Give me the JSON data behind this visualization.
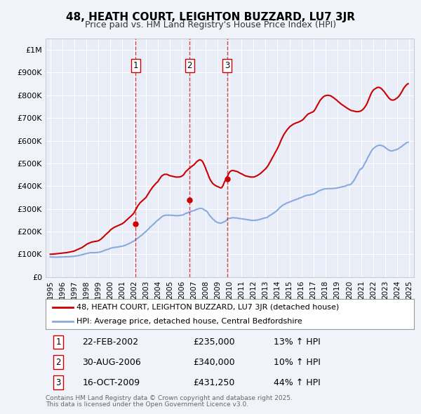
{
  "title": "48, HEATH COURT, LEIGHTON BUZZARD, LU7 3JR",
  "subtitle": "Price paid vs. HM Land Registry's House Price Index (HPI)",
  "background_color": "#f0f4fa",
  "plot_bg_color": "#e8edf8",
  "grid_color": "#ffffff",
  "ylim": [
    0,
    1050000
  ],
  "yticks": [
    0,
    100000,
    200000,
    300000,
    400000,
    500000,
    600000,
    700000,
    800000,
    900000,
    1000000
  ],
  "ytick_labels": [
    "£0",
    "£100K",
    "£200K",
    "£300K",
    "£400K",
    "£500K",
    "£600K",
    "£700K",
    "£800K",
    "£900K",
    "£1M"
  ],
  "sale_color": "#cc0000",
  "hpi_color": "#88aadd",
  "sale_date_years": [
    2002.14,
    2006.66,
    2009.79
  ],
  "sale_prices": [
    235000,
    340000,
    431250
  ],
  "sale_labels": [
    "1",
    "2",
    "3"
  ],
  "legend_sale_label": "48, HEATH COURT, LEIGHTON BUZZARD, LU7 3JR (detached house)",
  "legend_hpi_label": "HPI: Average price, detached house, Central Bedfordshire",
  "table_rows": [
    {
      "label": "1",
      "date": "22-FEB-2002",
      "price": "£235,000",
      "hpi": "13% ↑ HPI"
    },
    {
      "label": "2",
      "date": "30-AUG-2006",
      "price": "£340,000",
      "hpi": "10% ↑ HPI"
    },
    {
      "label": "3",
      "date": "16-OCT-2009",
      "price": "£431,250",
      "hpi": "44% ↑ HPI"
    }
  ],
  "footer_line1": "Contains HM Land Registry data © Crown copyright and database right 2025.",
  "footer_line2": "This data is licensed under the Open Government Licence v3.0.",
  "hpi_years": [
    1995.0,
    1995.08,
    1995.17,
    1995.25,
    1995.33,
    1995.42,
    1995.5,
    1995.58,
    1995.67,
    1995.75,
    1995.83,
    1995.92,
    1996.0,
    1996.08,
    1996.17,
    1996.25,
    1996.33,
    1996.42,
    1996.5,
    1996.58,
    1996.67,
    1996.75,
    1996.83,
    1996.92,
    1997.0,
    1997.08,
    1997.17,
    1997.25,
    1997.33,
    1997.42,
    1997.5,
    1997.58,
    1997.67,
    1997.75,
    1997.83,
    1997.92,
    1998.0,
    1998.08,
    1998.17,
    1998.25,
    1998.33,
    1998.42,
    1998.5,
    1998.58,
    1998.67,
    1998.75,
    1998.83,
    1998.92,
    1999.0,
    1999.08,
    1999.17,
    1999.25,
    1999.33,
    1999.42,
    1999.5,
    1999.58,
    1999.67,
    1999.75,
    1999.83,
    1999.92,
    2000.0,
    2000.08,
    2000.17,
    2000.25,
    2000.33,
    2000.42,
    2000.5,
    2000.58,
    2000.67,
    2000.75,
    2000.83,
    2000.92,
    2001.0,
    2001.08,
    2001.17,
    2001.25,
    2001.33,
    2001.42,
    2001.5,
    2001.58,
    2001.67,
    2001.75,
    2001.83,
    2001.92,
    2002.0,
    2002.08,
    2002.17,
    2002.25,
    2002.33,
    2002.42,
    2002.5,
    2002.58,
    2002.67,
    2002.75,
    2002.83,
    2002.92,
    2003.0,
    2003.08,
    2003.17,
    2003.25,
    2003.33,
    2003.42,
    2003.5,
    2003.58,
    2003.67,
    2003.75,
    2003.83,
    2003.92,
    2004.0,
    2004.08,
    2004.17,
    2004.25,
    2004.33,
    2004.42,
    2004.5,
    2004.58,
    2004.67,
    2004.75,
    2004.83,
    2004.92,
    2005.0,
    2005.08,
    2005.17,
    2005.25,
    2005.33,
    2005.42,
    2005.5,
    2005.58,
    2005.67,
    2005.75,
    2005.83,
    2005.92,
    2006.0,
    2006.08,
    2006.17,
    2006.25,
    2006.33,
    2006.42,
    2006.5,
    2006.58,
    2006.67,
    2006.75,
    2006.83,
    2006.92,
    2007.0,
    2007.08,
    2007.17,
    2007.25,
    2007.33,
    2007.42,
    2007.5,
    2007.58,
    2007.67,
    2007.75,
    2007.83,
    2007.92,
    2008.0,
    2008.08,
    2008.17,
    2008.25,
    2008.33,
    2008.42,
    2008.5,
    2008.58,
    2008.67,
    2008.75,
    2008.83,
    2008.92,
    2009.0,
    2009.08,
    2009.17,
    2009.25,
    2009.33,
    2009.42,
    2009.5,
    2009.58,
    2009.67,
    2009.75,
    2009.83,
    2009.92,
    2010.0,
    2010.08,
    2010.17,
    2010.25,
    2010.33,
    2010.42,
    2010.5,
    2010.58,
    2010.67,
    2010.75,
    2010.83,
    2010.92,
    2011.0,
    2011.08,
    2011.17,
    2011.25,
    2011.33,
    2011.42,
    2011.5,
    2011.58,
    2011.67,
    2011.75,
    2011.83,
    2011.92,
    2012.0,
    2012.08,
    2012.17,
    2012.25,
    2012.33,
    2012.42,
    2012.5,
    2012.58,
    2012.67,
    2012.75,
    2012.83,
    2012.92,
    2013.0,
    2013.08,
    2013.17,
    2013.25,
    2013.33,
    2013.42,
    2013.5,
    2013.58,
    2013.67,
    2013.75,
    2013.83,
    2013.92,
    2014.0,
    2014.08,
    2014.17,
    2014.25,
    2014.33,
    2014.42,
    2014.5,
    2014.58,
    2014.67,
    2014.75,
    2014.83,
    2014.92,
    2015.0,
    2015.08,
    2015.17,
    2015.25,
    2015.33,
    2015.42,
    2015.5,
    2015.58,
    2015.67,
    2015.75,
    2015.83,
    2015.92,
    2016.0,
    2016.08,
    2016.17,
    2016.25,
    2016.33,
    2016.42,
    2016.5,
    2016.58,
    2016.67,
    2016.75,
    2016.83,
    2016.92,
    2017.0,
    2017.08,
    2017.17,
    2017.25,
    2017.33,
    2017.42,
    2017.5,
    2017.58,
    2017.67,
    2017.75,
    2017.83,
    2017.92,
    2018.0,
    2018.08,
    2018.17,
    2018.25,
    2018.33,
    2018.42,
    2018.5,
    2018.58,
    2018.67,
    2018.75,
    2018.83,
    2018.92,
    2019.0,
    2019.08,
    2019.17,
    2019.25,
    2019.33,
    2019.42,
    2019.5,
    2019.58,
    2019.67,
    2019.75,
    2019.83,
    2019.92,
    2020.0,
    2020.08,
    2020.17,
    2020.25,
    2020.33,
    2020.42,
    2020.5,
    2020.58,
    2020.67,
    2020.75,
    2020.83,
    2020.92,
    2021.0,
    2021.08,
    2021.17,
    2021.25,
    2021.33,
    2021.42,
    2021.5,
    2021.58,
    2021.67,
    2021.75,
    2021.83,
    2021.92,
    2022.0,
    2022.08,
    2022.17,
    2022.25,
    2022.33,
    2022.42,
    2022.5,
    2022.58,
    2022.67,
    2022.75,
    2022.83,
    2022.92,
    2023.0,
    2023.08,
    2023.17,
    2023.25,
    2023.33,
    2023.42,
    2023.5,
    2023.58,
    2023.67,
    2023.75,
    2023.83,
    2023.92,
    2024.0,
    2024.08,
    2024.17,
    2024.25,
    2024.33,
    2024.42,
    2024.5,
    2024.58,
    2024.67,
    2024.75,
    2024.83,
    2024.92
  ],
  "hpi_values": [
    88000,
    87800,
    87600,
    87500,
    87400,
    87200,
    87000,
    87200,
    87400,
    87500,
    87700,
    87900,
    88000,
    88200,
    88400,
    88500,
    88700,
    88900,
    89000,
    89300,
    89700,
    90000,
    90300,
    90600,
    91000,
    92000,
    93000,
    93000,
    94000,
    95000,
    96000,
    97000,
    98000,
    99000,
    101000,
    102000,
    103000,
    104000,
    105000,
    106000,
    106500,
    107000,
    107000,
    107000,
    107000,
    107000,
    107500,
    108000,
    108000,
    109000,
    110000,
    111000,
    112500,
    114000,
    116000,
    118000,
    119500,
    121000,
    122000,
    123000,
    126000,
    127000,
    128000,
    129000,
    130000,
    130500,
    131000,
    131500,
    132000,
    133000,
    134000,
    134500,
    135000,
    136500,
    138000,
    139000,
    141000,
    143000,
    145000,
    147000,
    149000,
    151000,
    154000,
    156000,
    158000,
    162000,
    166000,
    168000,
    171000,
    175000,
    179000,
    182000,
    185000,
    189000,
    193000,
    197000,
    200000,
    205000,
    209000,
    213000,
    218000,
    222000,
    226000,
    230000,
    234000,
    238000,
    243000,
    247000,
    250000,
    254000,
    258000,
    262000,
    265000,
    268000,
    270000,
    271000,
    272000,
    272000,
    272000,
    272000,
    272000,
    272000,
    271500,
    271000,
    270500,
    270000,
    270000,
    270000,
    270000,
    270000,
    271000,
    272000,
    272000,
    273000,
    274500,
    278000,
    280000,
    281000,
    283000,
    285000,
    287000,
    288000,
    290000,
    291000,
    292000,
    294000,
    296000,
    298000,
    299000,
    300500,
    302000,
    302000,
    301500,
    300000,
    297000,
    294000,
    292000,
    289000,
    284000,
    277000,
    271000,
    265000,
    261000,
    256000,
    252000,
    248000,
    244000,
    242000,
    240000,
    238000,
    237500,
    237000,
    238000,
    240000,
    242000,
    244000,
    246000,
    251000,
    256000,
    258000,
    258000,
    259000,
    260000,
    261000,
    260500,
    260000,
    260000,
    259500,
    259000,
    258000,
    257500,
    257000,
    256000,
    255500,
    255000,
    254000,
    253500,
    253000,
    252000,
    251500,
    251000,
    250000,
    249500,
    249000,
    249000,
    249500,
    250000,
    250000,
    251000,
    252000,
    253000,
    254000,
    255500,
    257000,
    258500,
    260000,
    260000,
    261500,
    263000,
    267000,
    270000,
    272500,
    275000,
    278000,
    281000,
    284000,
    287000,
    290000,
    295000,
    299000,
    303500,
    308000,
    311500,
    315000,
    318000,
    320000,
    322000,
    325000,
    327000,
    328000,
    330000,
    331500,
    333000,
    335000,
    337000,
    338500,
    340000,
    341500,
    343000,
    345000,
    347000,
    348500,
    350000,
    352000,
    354000,
    356000,
    357500,
    359000,
    360000,
    360500,
    361000,
    362000,
    363000,
    364000,
    365000,
    367000,
    369500,
    372000,
    375000,
    377500,
    380000,
    381500,
    383000,
    385000,
    386500,
    388000,
    388000,
    388500,
    389000,
    389000,
    389000,
    389000,
    389000,
    389500,
    390000,
    390000,
    390500,
    391000,
    392000,
    393000,
    394000,
    395000,
    396000,
    397000,
    398000,
    399000,
    400000,
    402000,
    404000,
    406000,
    405000,
    407000,
    410000,
    415000,
    421000,
    427000,
    435000,
    443000,
    451000,
    460000,
    468000,
    475000,
    475000,
    480000,
    487000,
    495000,
    503000,
    511000,
    520000,
    529000,
    537000,
    545000,
    553000,
    560000,
    565000,
    568000,
    572000,
    575000,
    577000,
    579000,
    580000,
    580000,
    579000,
    578000,
    576000,
    574000,
    570000,
    567000,
    563000,
    560000,
    558000,
    556000,
    555000,
    555000,
    556000,
    558000,
    559000,
    560000,
    562000,
    564000,
    567000,
    570000,
    573000,
    576000,
    580000,
    583000,
    586000,
    590000,
    592000,
    593000
  ],
  "sale_line_years": [
    1995.0,
    1995.08,
    1995.17,
    1995.25,
    1995.33,
    1995.42,
    1995.5,
    1995.58,
    1995.67,
    1995.75,
    1995.83,
    1995.92,
    1996.0,
    1996.08,
    1996.17,
    1996.25,
    1996.33,
    1996.42,
    1996.5,
    1996.58,
    1996.67,
    1996.75,
    1996.83,
    1996.92,
    1997.0,
    1997.08,
    1997.17,
    1997.25,
    1997.33,
    1997.42,
    1997.5,
    1997.58,
    1997.67,
    1997.75,
    1997.83,
    1997.92,
    1998.0,
    1998.08,
    1998.17,
    1998.25,
    1998.33,
    1998.42,
    1998.5,
    1998.58,
    1998.67,
    1998.75,
    1998.83,
    1998.92,
    1999.0,
    1999.08,
    1999.17,
    1999.25,
    1999.33,
    1999.42,
    1999.5,
    1999.58,
    1999.67,
    1999.75,
    1999.83,
    1999.92,
    2000.0,
    2000.08,
    2000.17,
    2000.25,
    2000.33,
    2000.42,
    2000.5,
    2000.58,
    2000.67,
    2000.75,
    2000.83,
    2000.92,
    2001.0,
    2001.08,
    2001.17,
    2001.25,
    2001.33,
    2001.42,
    2001.5,
    2001.58,
    2001.67,
    2001.75,
    2001.83,
    2001.92,
    2002.0,
    2002.08,
    2002.17,
    2002.25,
    2002.33,
    2002.42,
    2002.5,
    2002.58,
    2002.67,
    2002.75,
    2002.83,
    2002.92,
    2003.0,
    2003.08,
    2003.17,
    2003.25,
    2003.33,
    2003.42,
    2003.5,
    2003.58,
    2003.67,
    2003.75,
    2003.83,
    2003.92,
    2004.0,
    2004.08,
    2004.17,
    2004.25,
    2004.33,
    2004.42,
    2004.5,
    2004.58,
    2004.67,
    2004.75,
    2004.83,
    2004.92,
    2005.0,
    2005.08,
    2005.17,
    2005.25,
    2005.33,
    2005.42,
    2005.5,
    2005.58,
    2005.67,
    2005.75,
    2005.83,
    2005.92,
    2006.0,
    2006.08,
    2006.17,
    2006.25,
    2006.33,
    2006.42,
    2006.5,
    2006.58,
    2006.67,
    2006.75,
    2006.83,
    2006.92,
    2007.0,
    2007.08,
    2007.17,
    2007.25,
    2007.33,
    2007.42,
    2007.5,
    2007.58,
    2007.67,
    2007.75,
    2007.83,
    2007.92,
    2008.0,
    2008.08,
    2008.17,
    2008.25,
    2008.33,
    2008.42,
    2008.5,
    2008.58,
    2008.67,
    2008.75,
    2008.83,
    2008.92,
    2009.0,
    2009.08,
    2009.17,
    2009.25,
    2009.33,
    2009.42,
    2009.5,
    2009.58,
    2009.67,
    2009.75,
    2009.83,
    2009.92,
    2010.0,
    2010.08,
    2010.17,
    2010.25,
    2010.33,
    2010.42,
    2010.5,
    2010.58,
    2010.67,
    2010.75,
    2010.83,
    2010.92,
    2011.0,
    2011.08,
    2011.17,
    2011.25,
    2011.33,
    2011.42,
    2011.5,
    2011.58,
    2011.67,
    2011.75,
    2011.83,
    2011.92,
    2012.0,
    2012.08,
    2012.17,
    2012.25,
    2012.33,
    2012.42,
    2012.5,
    2012.58,
    2012.67,
    2012.75,
    2012.83,
    2012.92,
    2013.0,
    2013.08,
    2013.17,
    2013.25,
    2013.33,
    2013.42,
    2013.5,
    2013.58,
    2013.67,
    2013.75,
    2013.83,
    2013.92,
    2014.0,
    2014.08,
    2014.17,
    2014.25,
    2014.33,
    2014.42,
    2014.5,
    2014.58,
    2014.67,
    2014.75,
    2014.83,
    2014.92,
    2015.0,
    2015.08,
    2015.17,
    2015.25,
    2015.33,
    2015.42,
    2015.5,
    2015.58,
    2015.67,
    2015.75,
    2015.83,
    2015.92,
    2016.0,
    2016.08,
    2016.17,
    2016.25,
    2016.33,
    2016.42,
    2016.5,
    2016.58,
    2016.67,
    2016.75,
    2016.83,
    2016.92,
    2017.0,
    2017.08,
    2017.17,
    2017.25,
    2017.33,
    2017.42,
    2017.5,
    2017.58,
    2017.67,
    2017.75,
    2017.83,
    2017.92,
    2018.0,
    2018.08,
    2018.17,
    2018.25,
    2018.33,
    2018.42,
    2018.5,
    2018.58,
    2018.67,
    2018.75,
    2018.83,
    2018.92,
    2019.0,
    2019.08,
    2019.17,
    2019.25,
    2019.33,
    2019.42,
    2019.5,
    2019.58,
    2019.67,
    2019.75,
    2019.83,
    2019.92,
    2020.0,
    2020.08,
    2020.17,
    2020.25,
    2020.33,
    2020.42,
    2020.5,
    2020.58,
    2020.67,
    2020.75,
    2020.83,
    2020.92,
    2021.0,
    2021.08,
    2021.17,
    2021.25,
    2021.33,
    2021.42,
    2021.5,
    2021.58,
    2021.67,
    2021.75,
    2021.83,
    2021.92,
    2022.0,
    2022.08,
    2022.17,
    2022.25,
    2022.33,
    2022.42,
    2022.5,
    2022.58,
    2022.67,
    2022.75,
    2022.83,
    2022.92,
    2023.0,
    2023.08,
    2023.17,
    2023.25,
    2023.33,
    2023.42,
    2023.5,
    2023.58,
    2023.67,
    2023.75,
    2023.83,
    2023.92,
    2024.0,
    2024.08,
    2024.17,
    2024.25,
    2024.33,
    2024.42,
    2024.5,
    2024.58,
    2024.67,
    2024.75,
    2024.83,
    2024.92
  ],
  "sale_line_values": [
    100000,
    100200,
    100500,
    100800,
    101200,
    101500,
    102000,
    102500,
    103000,
    103500,
    104000,
    104500,
    105000,
    105500,
    106000,
    106500,
    107000,
    107700,
    108500,
    109300,
    110000,
    111000,
    112000,
    113000,
    114000,
    116000,
    118000,
    120000,
    122000,
    124000,
    126000,
    128000,
    130000,
    133000,
    136000,
    139000,
    142000,
    145000,
    147000,
    149000,
    151000,
    153000,
    154000,
    155000,
    156000,
    156500,
    157000,
    158000,
    159000,
    161000,
    164000,
    167000,
    171000,
    175000,
    179000,
    184000,
    188000,
    192000,
    196000,
    200000,
    205000,
    209000,
    212000,
    215000,
    218000,
    220000,
    222000,
    224000,
    226000,
    228000,
    230000,
    232000,
    234000,
    237000,
    240000,
    244000,
    248000,
    252000,
    256000,
    260000,
    264000,
    268000,
    272000,
    277000,
    282000,
    290000,
    298000,
    306000,
    314000,
    320000,
    326000,
    330000,
    334000,
    338000,
    342000,
    346000,
    350000,
    357000,
    364000,
    371000,
    378000,
    385000,
    391000,
    397000,
    402000,
    407000,
    412000,
    416000,
    420000,
    427000,
    434000,
    440000,
    445000,
    448000,
    451000,
    452000,
    452000,
    452000,
    450000,
    448000,
    446000,
    445000,
    444000,
    443000,
    442000,
    441000,
    440000,
    440000,
    440000,
    440000,
    441000,
    442000,
    444000,
    447000,
    451000,
    458000,
    464000,
    468000,
    472000,
    476000,
    480000,
    484000,
    487000,
    490000,
    493000,
    498000,
    503000,
    508000,
    511000,
    514000,
    516000,
    515000,
    512000,
    507000,
    498000,
    488000,
    477000,
    466000,
    455000,
    443000,
    433000,
    424000,
    418000,
    412000,
    408000,
    405000,
    402000,
    400000,
    398000,
    396000,
    394000,
    392000,
    393000,
    400000,
    410000,
    420000,
    428000,
    436000,
    445000,
    455000,
    462000,
    466000,
    468000,
    469000,
    468000,
    467000,
    466000,
    465000,
    463000,
    461000,
    458000,
    456000,
    454000,
    452000,
    449000,
    447000,
    445000,
    444000,
    443000,
    442000,
    441000,
    440000,
    440000,
    440000,
    440000,
    441000,
    443000,
    445000,
    447000,
    450000,
    453000,
    456000,
    460000,
    464000,
    468000,
    472000,
    476000,
    481000,
    487000,
    494000,
    502000,
    510000,
    518000,
    526000,
    534000,
    542000,
    550000,
    558000,
    566000,
    575000,
    585000,
    596000,
    606000,
    615000,
    624000,
    631000,
    638000,
    644000,
    650000,
    655000,
    660000,
    664000,
    667000,
    670000,
    673000,
    675000,
    677000,
    679000,
    680000,
    682000,
    684000,
    686000,
    688000,
    691000,
    695000,
    700000,
    705000,
    710000,
    715000,
    718000,
    720000,
    722000,
    724000,
    726000,
    728000,
    733000,
    740000,
    748000,
    756000,
    764000,
    772000,
    779000,
    784000,
    789000,
    793000,
    796000,
    798000,
    799000,
    800000,
    800000,
    799000,
    798000,
    796000,
    793000,
    790000,
    787000,
    783000,
    780000,
    776000,
    772000,
    768000,
    764000,
    761000,
    758000,
    755000,
    752000,
    749000,
    746000,
    743000,
    740000,
    737000,
    735000,
    733000,
    732000,
    731000,
    730000,
    729000,
    728000,
    728000,
    728000,
    729000,
    730000,
    732000,
    735000,
    739000,
    744000,
    750000,
    757000,
    766000,
    776000,
    787000,
    798000,
    808000,
    816000,
    822000,
    826000,
    829000,
    832000,
    834000,
    835000,
    835000,
    833000,
    830000,
    826000,
    821000,
    816000,
    810000,
    804000,
    798000,
    792000,
    787000,
    783000,
    780000,
    779000,
    779000,
    780000,
    782000,
    785000,
    788000,
    792000,
    797000,
    803000,
    810000,
    818000,
    826000,
    833000,
    839000,
    844000,
    848000,
    851000
  ]
}
